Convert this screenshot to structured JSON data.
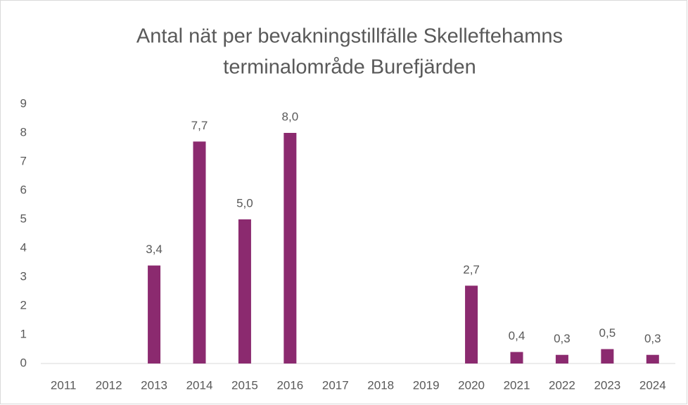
{
  "chart_data": {
    "type": "bar",
    "title": [
      "Antal nät per bevakningstillfälle Skelleftehamns",
      "terminalområde Burefjärden"
    ],
    "categories": [
      "2011",
      "2012",
      "2013",
      "2014",
      "2015",
      "2016",
      "2017",
      "2018",
      "2019",
      "2020",
      "2021",
      "2022",
      "2023",
      "2024"
    ],
    "values": [
      null,
      null,
      3.4,
      7.7,
      5.0,
      8.0,
      null,
      null,
      null,
      2.7,
      0.4,
      0.3,
      0.5,
      0.3
    ],
    "value_labels": [
      null,
      null,
      "3,4",
      "7,7",
      "5,0",
      "8,0",
      null,
      null,
      null,
      "2,7",
      "0,4",
      "0,3",
      "0,5",
      "0,3"
    ],
    "color": "#8b2a6f",
    "ylim": [
      0,
      9
    ],
    "yticks": [
      0,
      1,
      2,
      3,
      4,
      5,
      6,
      7,
      8,
      9
    ],
    "grid": false
  }
}
